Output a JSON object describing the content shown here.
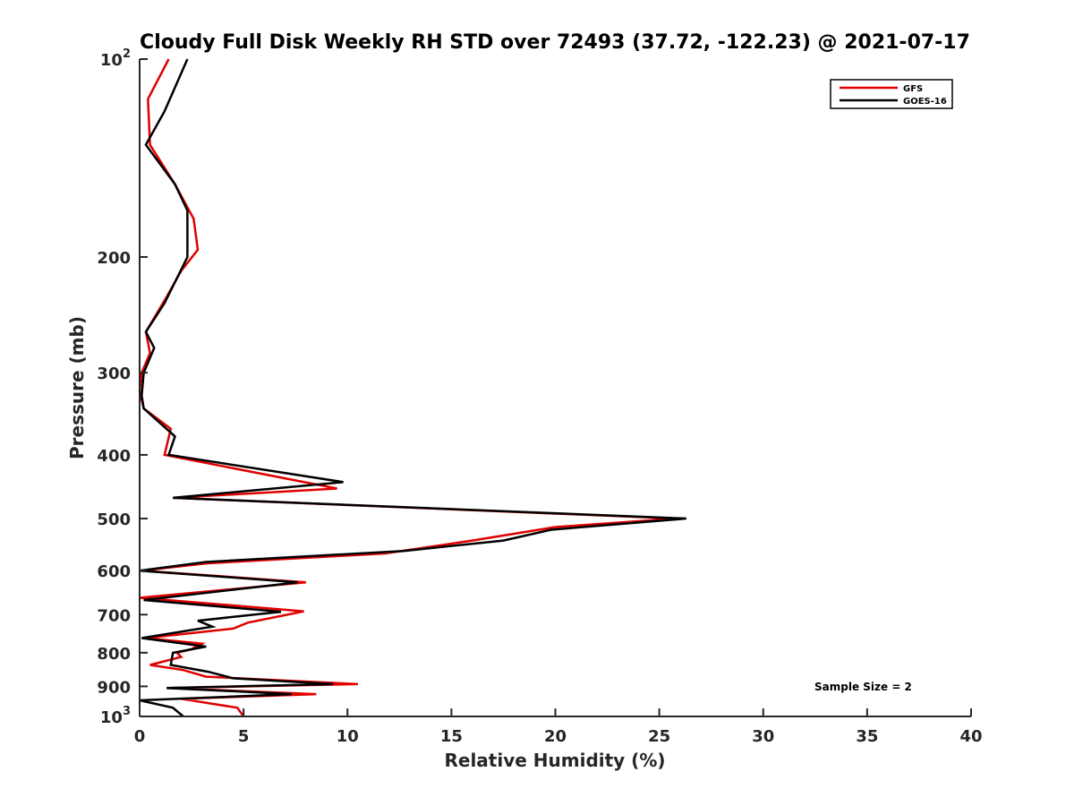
{
  "chart_data": {
    "type": "line",
    "title": "Cloudy Full Disk Weekly RH STD over 72493 (37.72, -122.23) @ 2021-07-17",
    "xlabel": "Relative Humidity (%)",
    "ylabel": "Pressure (mb)",
    "xlim": [
      0,
      40
    ],
    "ylim": [
      100,
      1000
    ],
    "yscale": "log",
    "y_reversed": true,
    "grid": false,
    "legend_position": "top-right",
    "x_ticks": [
      "0",
      "5",
      "10",
      "15",
      "20",
      "25",
      "30",
      "35",
      "40"
    ],
    "y_ticks": [
      {
        "value": 100,
        "base": "10",
        "exp": "2"
      },
      {
        "value": 200,
        "label": "200"
      },
      {
        "value": 300,
        "label": "300"
      },
      {
        "value": 400,
        "label": "400"
      },
      {
        "value": 500,
        "label": "500"
      },
      {
        "value": 600,
        "label": "600"
      },
      {
        "value": 700,
        "label": "700"
      },
      {
        "value": 800,
        "label": "800"
      },
      {
        "value": 900,
        "label": "900"
      },
      {
        "value": 1000,
        "base": "10",
        "exp": "3"
      }
    ],
    "annotation": "Sample Size = 2",
    "series": [
      {
        "name": "GFS",
        "color": "#e00000",
        "points": [
          [
            1.4,
            100
          ],
          [
            0.4,
            115
          ],
          [
            0.5,
            135
          ],
          [
            1.7,
            155
          ],
          [
            2.6,
            175
          ],
          [
            2.8,
            195
          ],
          [
            2.0,
            210
          ],
          [
            1.3,
            230
          ],
          [
            0.3,
            260
          ],
          [
            0.5,
            280
          ],
          [
            0.1,
            300
          ],
          [
            0.0,
            320
          ],
          [
            0.2,
            340
          ],
          [
            1.5,
            365
          ],
          [
            1.2,
            400
          ],
          [
            9.5,
            450
          ],
          [
            1.6,
            465
          ],
          [
            25.8,
            500
          ],
          [
            20.0,
            515
          ],
          [
            16.0,
            540
          ],
          [
            11.8,
            565
          ],
          [
            3.2,
            585
          ],
          [
            0.1,
            600
          ],
          [
            8.0,
            625
          ],
          [
            0.0,
            660
          ],
          [
            7.9,
            692
          ],
          [
            5.2,
            720
          ],
          [
            4.5,
            735
          ],
          [
            0.3,
            760
          ],
          [
            3.0,
            775
          ],
          [
            2.5,
            790
          ],
          [
            1.8,
            800
          ],
          [
            2.0,
            812
          ],
          [
            0.5,
            835
          ],
          [
            2.1,
            850
          ],
          [
            3.2,
            870
          ],
          [
            10.5,
            893
          ],
          [
            1.3,
            905
          ],
          [
            8.5,
            925
          ],
          [
            2.0,
            940
          ],
          [
            4.7,
            970
          ],
          [
            5.0,
            1000
          ]
        ]
      },
      {
        "name": "GOES-16",
        "color": "#000000",
        "points": [
          [
            2.3,
            100
          ],
          [
            1.2,
            120
          ],
          [
            0.3,
            135
          ],
          [
            1.7,
            155
          ],
          [
            2.3,
            170
          ],
          [
            2.3,
            200
          ],
          [
            1.5,
            225
          ],
          [
            1.2,
            235
          ],
          [
            0.3,
            260
          ],
          [
            0.7,
            275
          ],
          [
            0.2,
            300
          ],
          [
            0.1,
            325
          ],
          [
            0.2,
            340
          ],
          [
            1.7,
            375
          ],
          [
            1.4,
            400
          ],
          [
            9.8,
            440
          ],
          [
            1.6,
            465
          ],
          [
            26.3,
            500
          ],
          [
            19.8,
            520
          ],
          [
            17.5,
            540
          ],
          [
            12.7,
            560
          ],
          [
            3.2,
            582
          ],
          [
            0.0,
            600
          ],
          [
            7.6,
            625
          ],
          [
            0.2,
            665
          ],
          [
            6.8,
            693
          ],
          [
            2.8,
            715
          ],
          [
            3.5,
            730
          ],
          [
            0.1,
            760
          ],
          [
            3.2,
            783
          ],
          [
            1.6,
            800
          ],
          [
            1.5,
            835
          ],
          [
            3.3,
            855
          ],
          [
            4.5,
            875
          ],
          [
            9.3,
            893
          ],
          [
            1.3,
            905
          ],
          [
            7.3,
            925
          ],
          [
            0.0,
            945
          ],
          [
            1.6,
            970
          ],
          [
            2.1,
            1000
          ]
        ]
      }
    ]
  }
}
